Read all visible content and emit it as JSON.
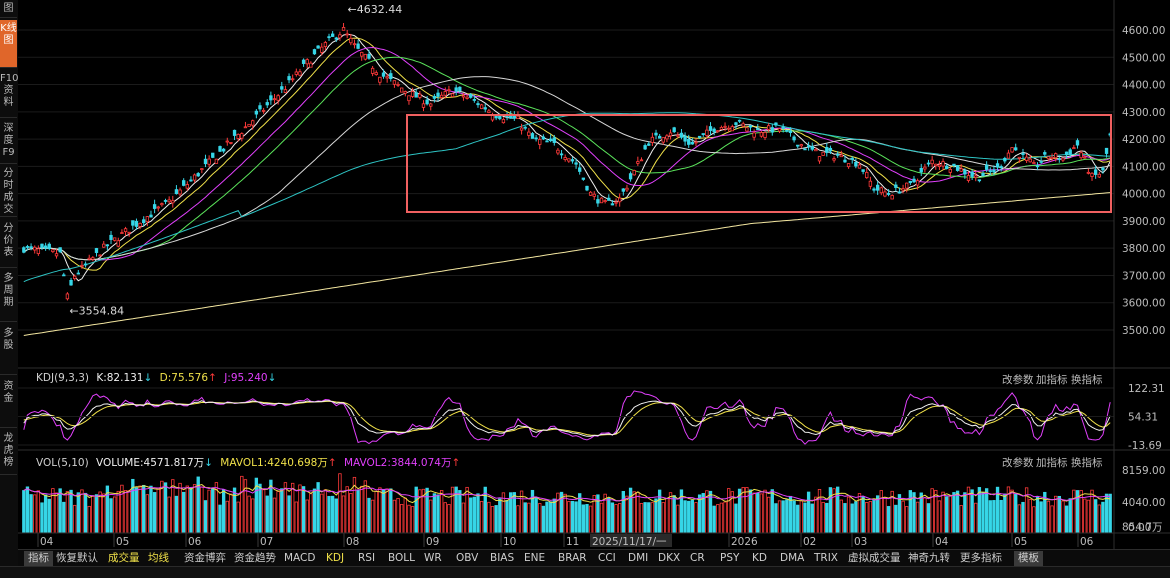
{
  "sidebar": [
    {
      "label": "图",
      "active": false
    },
    {
      "label": "K线图",
      "active": true
    },
    {
      "label": "F10资料",
      "active": false
    },
    {
      "label": "深度F9",
      "active": false
    },
    {
      "label": "分时成交",
      "active": false
    },
    {
      "label": "分价表",
      "active": false
    },
    {
      "label": "多周期",
      "active": false
    },
    {
      "label": "多股",
      "active": false
    },
    {
      "label": "资金",
      "active": false
    },
    {
      "label": "龙虎榜",
      "active": false
    }
  ],
  "price_chart": {
    "y_ticks": [
      "4600.00",
      "4500.00",
      "4400.00",
      "4300.00",
      "4200.00",
      "4100.00",
      "4000.00",
      "3900.00",
      "3800.00",
      "3700.00",
      "3600.00",
      "3500.00"
    ],
    "y_values": [
      4600,
      4500,
      4400,
      4300,
      4200,
      4100,
      4000,
      3900,
      3800,
      3700,
      3600,
      3500
    ],
    "high_label": "4632.44",
    "low_label": "3554.84",
    "colors": {
      "up": "#ff3a3a",
      "down": "#36d6e7",
      "ma5": "#f0f0f0",
      "ma10": "#f0e14a",
      "ma20": "#e040fb",
      "ma30": "#5be35b",
      "ma60": "#d8d8d8",
      "ma120": "#2ec4c4",
      "ma250": "#f3e6a0",
      "box": "#f06060"
    }
  },
  "kdj": {
    "title": "KDJ(9,3,3)",
    "k": "K:82.131",
    "d": "D:75.576",
    "j": "J:95.240",
    "k_arrow": "↓",
    "d_arrow": "↑",
    "j_arrow": "↓",
    "y_ticks": [
      "122.31",
      "54.31",
      "-13.69"
    ]
  },
  "volume": {
    "title": "VOL(5,10)",
    "volume": "VOLUME:4571.817万",
    "volume_arrow": "↓",
    "mavol1": "MAVOL1:4240.698万",
    "mavol1_arrow": "↑",
    "mavol2": "MAVOL2:3844.074万",
    "mavol2_arrow": "↑",
    "y_ticks": [
      "8159.00",
      "4040.00",
      "854.7万",
      "0.00"
    ]
  },
  "panel_controls": {
    "edit_params": "改参数",
    "add_indicator": "加指标",
    "switch_indicator": "换指标"
  },
  "x_axis": {
    "labels": [
      "04",
      "05",
      "06",
      "07",
      "08",
      "09",
      "10",
      "11",
      "2025/11/17/一",
      "2026",
      "02",
      "03",
      "04",
      "05",
      "06"
    ]
  },
  "tabs": [
    {
      "label": "指标",
      "style": "active"
    },
    {
      "label": "恢复默认",
      "style": ""
    },
    {
      "label": "成交量",
      "style": "yellow"
    },
    {
      "label": "均线",
      "style": "yellow"
    },
    {
      "label": "资金博弈",
      "style": ""
    },
    {
      "label": "资金趋势",
      "style": ""
    },
    {
      "label": "MACD",
      "style": ""
    },
    {
      "label": "KDJ",
      "style": "yellow"
    },
    {
      "label": "RSI",
      "style": ""
    },
    {
      "label": "BOLL",
      "style": ""
    },
    {
      "label": "WR",
      "style": ""
    },
    {
      "label": "OBV",
      "style": ""
    },
    {
      "label": "BIAS",
      "style": ""
    },
    {
      "label": "ENE",
      "style": ""
    },
    {
      "label": "BRAR",
      "style": ""
    },
    {
      "label": "CCI",
      "style": ""
    },
    {
      "label": "DMI",
      "style": ""
    },
    {
      "label": "DKX",
      "style": ""
    },
    {
      "label": "CR",
      "style": ""
    },
    {
      "label": "PSY",
      "style": ""
    },
    {
      "label": "KD",
      "style": ""
    },
    {
      "label": "DMA",
      "style": ""
    },
    {
      "label": "TRIX",
      "style": ""
    },
    {
      "label": "虚拟成交量",
      "style": ""
    },
    {
      "label": "神奇九转",
      "style": ""
    },
    {
      "label": "更多指标",
      "style": ""
    },
    {
      "label": "模板",
      "style": "active"
    }
  ]
}
